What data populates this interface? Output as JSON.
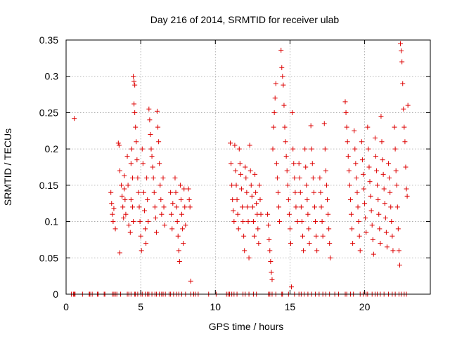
{
  "chart_data": {
    "type": "scatter",
    "title": "Day 216 of 2014, SRMTID for receiver ulab",
    "xlabel": "GPS time / hours",
    "ylabel": "SRMTID / TECUs",
    "xlim": [
      0,
      24.4
    ],
    "ylim": [
      0,
      0.35
    ],
    "x_ticks": [
      0,
      5,
      10,
      15,
      20
    ],
    "x_tick_labels": [
      "0",
      "5",
      "10",
      "15",
      "20"
    ],
    "y_ticks": [
      0,
      0.05,
      0.1,
      0.15,
      0.2,
      0.25,
      0.3,
      0.35
    ],
    "y_tick_labels": [
      "0",
      "0.05",
      "0.1",
      "0.15",
      "0.2",
      "0.25",
      "0.3",
      "0.35"
    ],
    "grid": true,
    "marker": "+",
    "series_color": "#dd0000",
    "series": [
      {
        "name": "SRMTID",
        "points": [
          [
            0.55,
            0.242
          ],
          [
            3.0,
            0.14
          ],
          [
            3.05,
            0.125
          ],
          [
            3.1,
            0.11
          ],
          [
            3.15,
            0.1
          ],
          [
            3.2,
            0.118
          ],
          [
            3.3,
            0.09
          ],
          [
            3.5,
            0.208
          ],
          [
            3.55,
            0.205
          ],
          [
            3.6,
            0.17
          ],
          [
            3.6,
            0.057
          ],
          [
            3.7,
            0.15
          ],
          [
            3.75,
            0.135
          ],
          [
            3.8,
            0.12
          ],
          [
            3.85,
            0.105
          ],
          [
            3.9,
            0.163
          ],
          [
            3.9,
            0.145
          ],
          [
            3.95,
            0.13
          ],
          [
            4.0,
            0.11
          ],
          [
            4.1,
            0.19
          ],
          [
            4.15,
            0.15
          ],
          [
            4.2,
            0.095
          ],
          [
            4.3,
            0.085
          ],
          [
            4.35,
            0.18
          ],
          [
            4.35,
            0.13
          ],
          [
            4.4,
            0.2
          ],
          [
            4.45,
            0.16
          ],
          [
            4.45,
            0.12
          ],
          [
            4.5,
            0.1
          ],
          [
            4.5,
            0.3
          ],
          [
            4.55,
            0.293
          ],
          [
            4.6,
            0.288
          ],
          [
            4.55,
            0.262
          ],
          [
            4.6,
            0.25
          ],
          [
            4.65,
            0.23
          ],
          [
            4.7,
            0.21
          ],
          [
            4.75,
            0.185
          ],
          [
            4.8,
            0.16
          ],
          [
            4.85,
            0.14
          ],
          [
            4.9,
            0.12
          ],
          [
            4.95,
            0.1
          ],
          [
            5.0,
            0.08
          ],
          [
            5.05,
            0.06
          ],
          [
            5.1,
            0.2
          ],
          [
            5.15,
            0.18
          ],
          [
            5.2,
            0.14
          ],
          [
            5.25,
            0.115
          ],
          [
            5.3,
            0.09
          ],
          [
            5.35,
            0.07
          ],
          [
            5.4,
            0.16
          ],
          [
            5.45,
            0.13
          ],
          [
            5.5,
            0.1
          ],
          [
            5.55,
            0.255
          ],
          [
            5.6,
            0.24
          ],
          [
            5.65,
            0.22
          ],
          [
            5.7,
            0.2
          ],
          [
            5.75,
            0.19
          ],
          [
            5.8,
            0.175
          ],
          [
            5.85,
            0.16
          ],
          [
            5.9,
            0.14
          ],
          [
            5.95,
            0.12
          ],
          [
            6.0,
            0.105
          ],
          [
            6.05,
            0.085
          ],
          [
            6.1,
            0.252
          ],
          [
            6.15,
            0.23
          ],
          [
            6.2,
            0.21
          ],
          [
            6.25,
            0.18
          ],
          [
            6.3,
            0.15
          ],
          [
            6.35,
            0.13
          ],
          [
            6.4,
            0.11
          ],
          [
            6.5,
            0.16
          ],
          [
            6.55,
            0.12
          ],
          [
            6.6,
            0.095
          ],
          [
            7.0,
            0.14
          ],
          [
            7.05,
            0.11
          ],
          [
            7.1,
            0.09
          ],
          [
            7.15,
            0.125
          ],
          [
            7.3,
            0.16
          ],
          [
            7.35,
            0.14
          ],
          [
            7.4,
            0.12
          ],
          [
            7.45,
            0.1
          ],
          [
            7.5,
            0.08
          ],
          [
            7.55,
            0.06
          ],
          [
            7.6,
            0.045
          ],
          [
            7.65,
            0.15
          ],
          [
            7.7,
            0.13
          ],
          [
            7.75,
            0.11
          ],
          [
            7.8,
            0.09
          ],
          [
            7.85,
            0.07
          ],
          [
            7.9,
            0.145
          ],
          [
            7.95,
            0.12
          ],
          [
            8.0,
            0.095
          ],
          [
            8.2,
            0.145
          ],
          [
            8.25,
            0.13
          ],
          [
            8.3,
            0.12
          ],
          [
            8.35,
            0.018
          ],
          [
            11.0,
            0.208
          ],
          [
            11.05,
            0.18
          ],
          [
            11.1,
            0.15
          ],
          [
            11.15,
            0.13
          ],
          [
            11.2,
            0.115
          ],
          [
            11.25,
            0.1
          ],
          [
            11.3,
            0.205
          ],
          [
            11.35,
            0.17
          ],
          [
            11.4,
            0.15
          ],
          [
            11.45,
            0.13
          ],
          [
            11.5,
            0.11
          ],
          [
            11.55,
            0.09
          ],
          [
            11.6,
            0.2
          ],
          [
            11.65,
            0.18
          ],
          [
            11.7,
            0.165
          ],
          [
            11.75,
            0.145
          ],
          [
            11.8,
            0.12
          ],
          [
            11.85,
            0.1
          ],
          [
            11.9,
            0.08
          ],
          [
            11.95,
            0.06
          ],
          [
            12.0,
            0.175
          ],
          [
            12.05,
            0.16
          ],
          [
            12.1,
            0.14
          ],
          [
            12.15,
            0.12
          ],
          [
            12.2,
            0.1
          ],
          [
            12.25,
            0.05
          ],
          [
            12.3,
            0.205
          ],
          [
            12.35,
            0.17
          ],
          [
            12.4,
            0.15
          ],
          [
            12.45,
            0.135
          ],
          [
            12.5,
            0.12
          ],
          [
            12.55,
            0.1
          ],
          [
            12.6,
            0.08
          ],
          [
            12.65,
            0.165
          ],
          [
            12.7,
            0.14
          ],
          [
            12.75,
            0.125
          ],
          [
            12.8,
            0.11
          ],
          [
            12.85,
            0.09
          ],
          [
            12.9,
            0.07
          ],
          [
            12.95,
            0.15
          ],
          [
            13.0,
            0.13
          ],
          [
            13.05,
            0.11
          ],
          [
            13.5,
            0.11
          ],
          [
            13.55,
            0.095
          ],
          [
            13.6,
            0.075
          ],
          [
            13.65,
            0.06
          ],
          [
            13.7,
            0.045
          ],
          [
            13.75,
            0.03
          ],
          [
            13.8,
            0.02
          ],
          [
            13.85,
            0.2
          ],
          [
            13.9,
            0.23
          ],
          [
            13.95,
            0.25
          ],
          [
            14.0,
            0.27
          ],
          [
            14.05,
            0.29
          ],
          [
            14.1,
            0.18
          ],
          [
            14.15,
            0.16
          ],
          [
            14.2,
            0.14
          ],
          [
            14.25,
            0.12
          ],
          [
            14.3,
            0.1
          ],
          [
            14.4,
            0.336
          ],
          [
            14.45,
            0.312
          ],
          [
            14.5,
            0.3
          ],
          [
            14.55,
            0.288
          ],
          [
            14.6,
            0.26
          ],
          [
            14.65,
            0.23
          ],
          [
            14.7,
            0.21
          ],
          [
            14.75,
            0.19
          ],
          [
            14.8,
            0.17
          ],
          [
            14.85,
            0.15
          ],
          [
            14.9,
            0.13
          ],
          [
            14.95,
            0.11
          ],
          [
            15.0,
            0.09
          ],
          [
            15.05,
            0.07
          ],
          [
            15.1,
            0.01
          ],
          [
            15.15,
            0.25
          ],
          [
            15.2,
            0.2
          ],
          [
            15.25,
            0.18
          ],
          [
            15.3,
            0.16
          ],
          [
            15.35,
            0.14
          ],
          [
            15.4,
            0.12
          ],
          [
            15.5,
            0.1
          ],
          [
            15.6,
            0.18
          ],
          [
            15.65,
            0.16
          ],
          [
            15.7,
            0.14
          ],
          [
            15.75,
            0.12
          ],
          [
            15.8,
            0.1
          ],
          [
            15.85,
            0.08
          ],
          [
            15.9,
            0.06
          ],
          [
            16.0,
            0.2
          ],
          [
            16.05,
            0.175
          ],
          [
            16.1,
            0.15
          ],
          [
            16.15,
            0.13
          ],
          [
            16.2,
            0.11
          ],
          [
            16.25,
            0.09
          ],
          [
            16.3,
            0.07
          ],
          [
            16.4,
            0.232
          ],
          [
            16.45,
            0.2
          ],
          [
            16.5,
            0.18
          ],
          [
            16.55,
            0.16
          ],
          [
            16.6,
            0.14
          ],
          [
            16.65,
            0.12
          ],
          [
            16.7,
            0.1
          ],
          [
            16.75,
            0.08
          ],
          [
            16.8,
            0.06
          ],
          [
            17.0,
            0.16
          ],
          [
            17.05,
            0.14
          ],
          [
            17.1,
            0.12
          ],
          [
            17.15,
            0.1
          ],
          [
            17.2,
            0.08
          ],
          [
            17.3,
            0.235
          ],
          [
            17.35,
            0.2
          ],
          [
            17.4,
            0.17
          ],
          [
            17.45,
            0.15
          ],
          [
            17.5,
            0.13
          ],
          [
            17.55,
            0.11
          ],
          [
            17.6,
            0.09
          ],
          [
            17.65,
            0.07
          ],
          [
            17.7,
            0.05
          ],
          [
            18.7,
            0.265
          ],
          [
            18.75,
            0.25
          ],
          [
            18.8,
            0.23
          ],
          [
            18.85,
            0.21
          ],
          [
            18.9,
            0.19
          ],
          [
            18.95,
            0.17
          ],
          [
            19.0,
            0.15
          ],
          [
            19.05,
            0.13
          ],
          [
            19.1,
            0.11
          ],
          [
            19.15,
            0.09
          ],
          [
            19.2,
            0.07
          ],
          [
            19.3,
            0.225
          ],
          [
            19.35,
            0.2
          ],
          [
            19.4,
            0.18
          ],
          [
            19.45,
            0.16
          ],
          [
            19.5,
            0.14
          ],
          [
            19.55,
            0.12
          ],
          [
            19.6,
            0.1
          ],
          [
            19.65,
            0.08
          ],
          [
            19.7,
            0.06
          ],
          [
            19.8,
            0.21
          ],
          [
            19.85,
            0.185
          ],
          [
            19.9,
            0.165
          ],
          [
            19.95,
            0.145
          ],
          [
            20.0,
            0.125
          ],
          [
            20.05,
            0.105
          ],
          [
            20.1,
            0.085
          ],
          [
            20.2,
            0.23
          ],
          [
            20.25,
            0.2
          ],
          [
            20.3,
            0.175
          ],
          [
            20.35,
            0.155
          ],
          [
            20.4,
            0.135
          ],
          [
            20.45,
            0.115
          ],
          [
            20.5,
            0.095
          ],
          [
            20.55,
            0.075
          ],
          [
            20.6,
            0.055
          ],
          [
            20.7,
            0.215
          ],
          [
            20.75,
            0.19
          ],
          [
            20.8,
            0.17
          ],
          [
            20.85,
            0.15
          ],
          [
            20.9,
            0.13
          ],
          [
            20.95,
            0.11
          ],
          [
            21.0,
            0.09
          ],
          [
            21.05,
            0.07
          ],
          [
            21.1,
            0.245
          ],
          [
            21.15,
            0.21
          ],
          [
            21.2,
            0.185
          ],
          [
            21.25,
            0.165
          ],
          [
            21.3,
            0.145
          ],
          [
            21.35,
            0.125
          ],
          [
            21.4,
            0.105
          ],
          [
            21.45,
            0.085
          ],
          [
            21.5,
            0.065
          ],
          [
            21.6,
            0.18
          ],
          [
            21.65,
            0.16
          ],
          [
            21.7,
            0.14
          ],
          [
            21.75,
            0.12
          ],
          [
            21.8,
            0.1
          ],
          [
            21.85,
            0.08
          ],
          [
            21.9,
            0.06
          ],
          [
            22.0,
            0.23
          ],
          [
            22.05,
            0.2
          ],
          [
            22.1,
            0.17
          ],
          [
            22.15,
            0.15
          ],
          [
            22.2,
            0.12
          ],
          [
            22.25,
            0.09
          ],
          [
            22.3,
            0.06
          ],
          [
            22.35,
            0.04
          ],
          [
            22.4,
            0.345
          ],
          [
            22.45,
            0.335
          ],
          [
            22.5,
            0.32
          ],
          [
            22.55,
            0.29
          ],
          [
            22.6,
            0.255
          ],
          [
            22.65,
            0.23
          ],
          [
            22.7,
            0.21
          ],
          [
            22.75,
            0.175
          ],
          [
            22.8,
            0.145
          ],
          [
            22.85,
            0.135
          ],
          [
            22.9,
            0.26
          ]
        ]
      }
    ],
    "zero_points_x": [
      0.35,
      0.5,
      0.55,
      0.6,
      1.1,
      1.55,
      1.6,
      1.75,
      2.1,
      2.15,
      2.55,
      2.6,
      3.1,
      3.2,
      3.3,
      3.4,
      3.65,
      4.1,
      4.2,
      4.35,
      4.6,
      4.65,
      4.8,
      5.0,
      5.1,
      5.3,
      5.45,
      5.55,
      5.75,
      5.95,
      6.05,
      6.25,
      6.4,
      6.5,
      6.65,
      6.9,
      7.0,
      7.2,
      7.4,
      7.55,
      7.75,
      8.0,
      8.35,
      8.55,
      8.65,
      8.85,
      9.55,
      10.05,
      10.75,
      10.85,
      10.95,
      11.1,
      11.25,
      11.45,
      11.85,
      12.0,
      12.25,
      12.55,
      12.75,
      13.55,
      13.65,
      13.8,
      14.05,
      14.45,
      14.5,
      14.9,
      15.3,
      15.6,
      15.75,
      15.95,
      16.2,
      16.45,
      16.7,
      16.95,
      17.2,
      17.4,
      17.65,
      18.0,
      18.25,
      18.7,
      18.8,
      19.05,
      19.25,
      19.7,
      19.9,
      20.1,
      20.2,
      20.5,
      20.7,
      20.85,
      21.05,
      21.3,
      21.6,
      21.85,
      22.05,
      22.3,
      22.45,
      22.65,
      22.8
    ]
  }
}
